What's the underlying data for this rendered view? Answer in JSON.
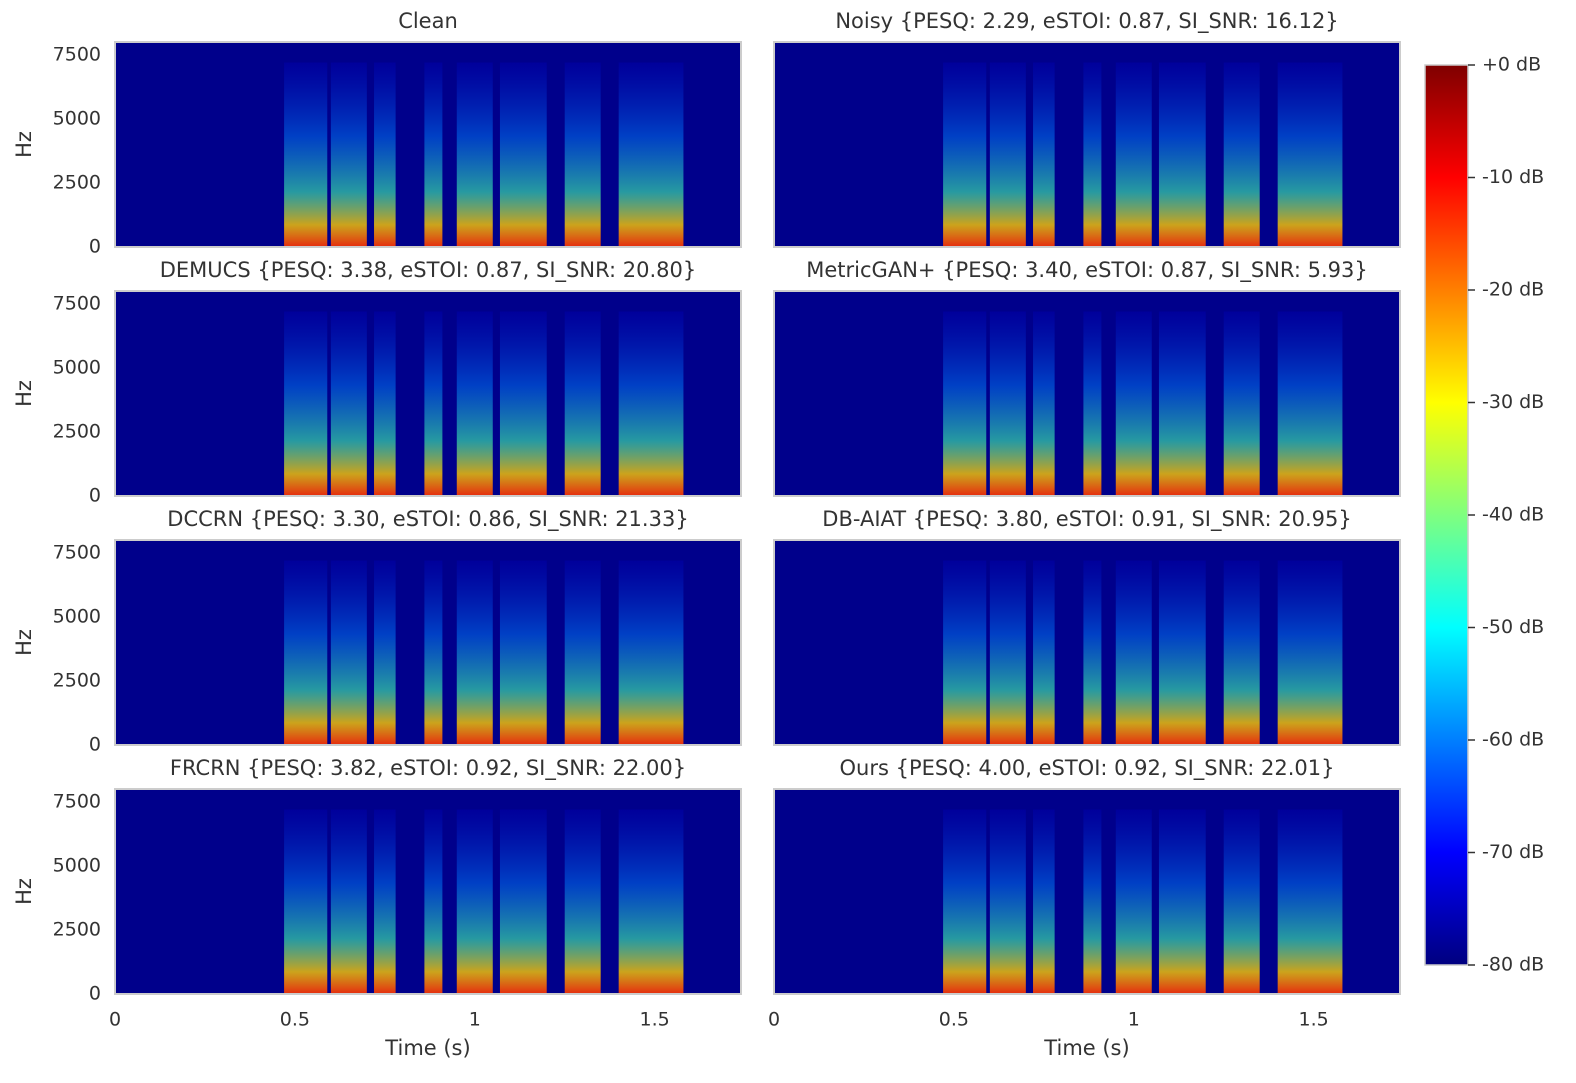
{
  "chart_data": [
    {
      "type": "spectrogram",
      "title": "Clean",
      "ylabel": "Hz",
      "xlim": [
        0,
        1.74
      ],
      "ylim": [
        0,
        8000
      ],
      "yticks": [
        0,
        2500,
        5000,
        7500
      ]
    },
    {
      "type": "spectrogram",
      "title": "Noisy  {PESQ: 2.29, eSTOI: 0.87, SI_SNR: 16.12}",
      "xlim": [
        0,
        1.74
      ],
      "ylim": [
        0,
        8000
      ]
    },
    {
      "type": "spectrogram",
      "title": "DEMUCS  {PESQ: 3.38, eSTOI: 0.87, SI_SNR: 20.80}",
      "ylabel": "Hz",
      "xlim": [
        0,
        1.74
      ],
      "ylim": [
        0,
        8000
      ],
      "yticks": [
        0,
        2500,
        5000,
        7500
      ]
    },
    {
      "type": "spectrogram",
      "title": "MetricGAN+  {PESQ: 3.40, eSTOI: 0.87, SI_SNR: 5.93}",
      "xlim": [
        0,
        1.74
      ],
      "ylim": [
        0,
        8000
      ]
    },
    {
      "type": "spectrogram",
      "title": "DCCRN  {PESQ: 3.30, eSTOI: 0.86, SI_SNR: 21.33}",
      "ylabel": "Hz",
      "xlim": [
        0,
        1.74
      ],
      "ylim": [
        0,
        8000
      ],
      "yticks": [
        0,
        2500,
        5000,
        7500
      ]
    },
    {
      "type": "spectrogram",
      "title": "DB-AIAT  {PESQ: 3.80, eSTOI: 0.91, SI_SNR: 20.95}",
      "xlim": [
        0,
        1.74
      ],
      "ylim": [
        0,
        8000
      ]
    },
    {
      "type": "spectrogram",
      "title": "FRCRN  {PESQ: 3.82, eSTOI: 0.92, SI_SNR: 22.00}",
      "ylabel": "Hz",
      "xlabel": "Time (s)",
      "xlim": [
        0,
        1.74
      ],
      "ylim": [
        0,
        8000
      ],
      "yticks": [
        0,
        2500,
        5000,
        7500
      ],
      "xticks": [
        0,
        0.5,
        1,
        1.5
      ]
    },
    {
      "type": "spectrogram",
      "title": "Ours  {PESQ: 4.00, eSTOI: 0.92, SI_SNR: 22.01}",
      "xlabel": "Time (s)",
      "xlim": [
        0,
        1.74
      ],
      "ylim": [
        0,
        8000
      ],
      "xticks": [
        0,
        0.5,
        1,
        1.5
      ]
    },
    {
      "type": "colorbar",
      "colormap": "jet",
      "ylim": [
        -80,
        0
      ],
      "yticks": [
        {
          "value": 0,
          "label": "+0 dB"
        },
        {
          "value": -10,
          "label": "-10 dB"
        },
        {
          "value": -20,
          "label": "-20 dB"
        },
        {
          "value": -30,
          "label": "-30 dB"
        },
        {
          "value": -40,
          "label": "-40 dB"
        },
        {
          "value": -50,
          "label": "-50 dB"
        },
        {
          "value": -60,
          "label": "-60 dB"
        },
        {
          "value": -70,
          "label": "-70 dB"
        },
        {
          "value": -80,
          "label": "-80 dB"
        }
      ]
    }
  ]
}
